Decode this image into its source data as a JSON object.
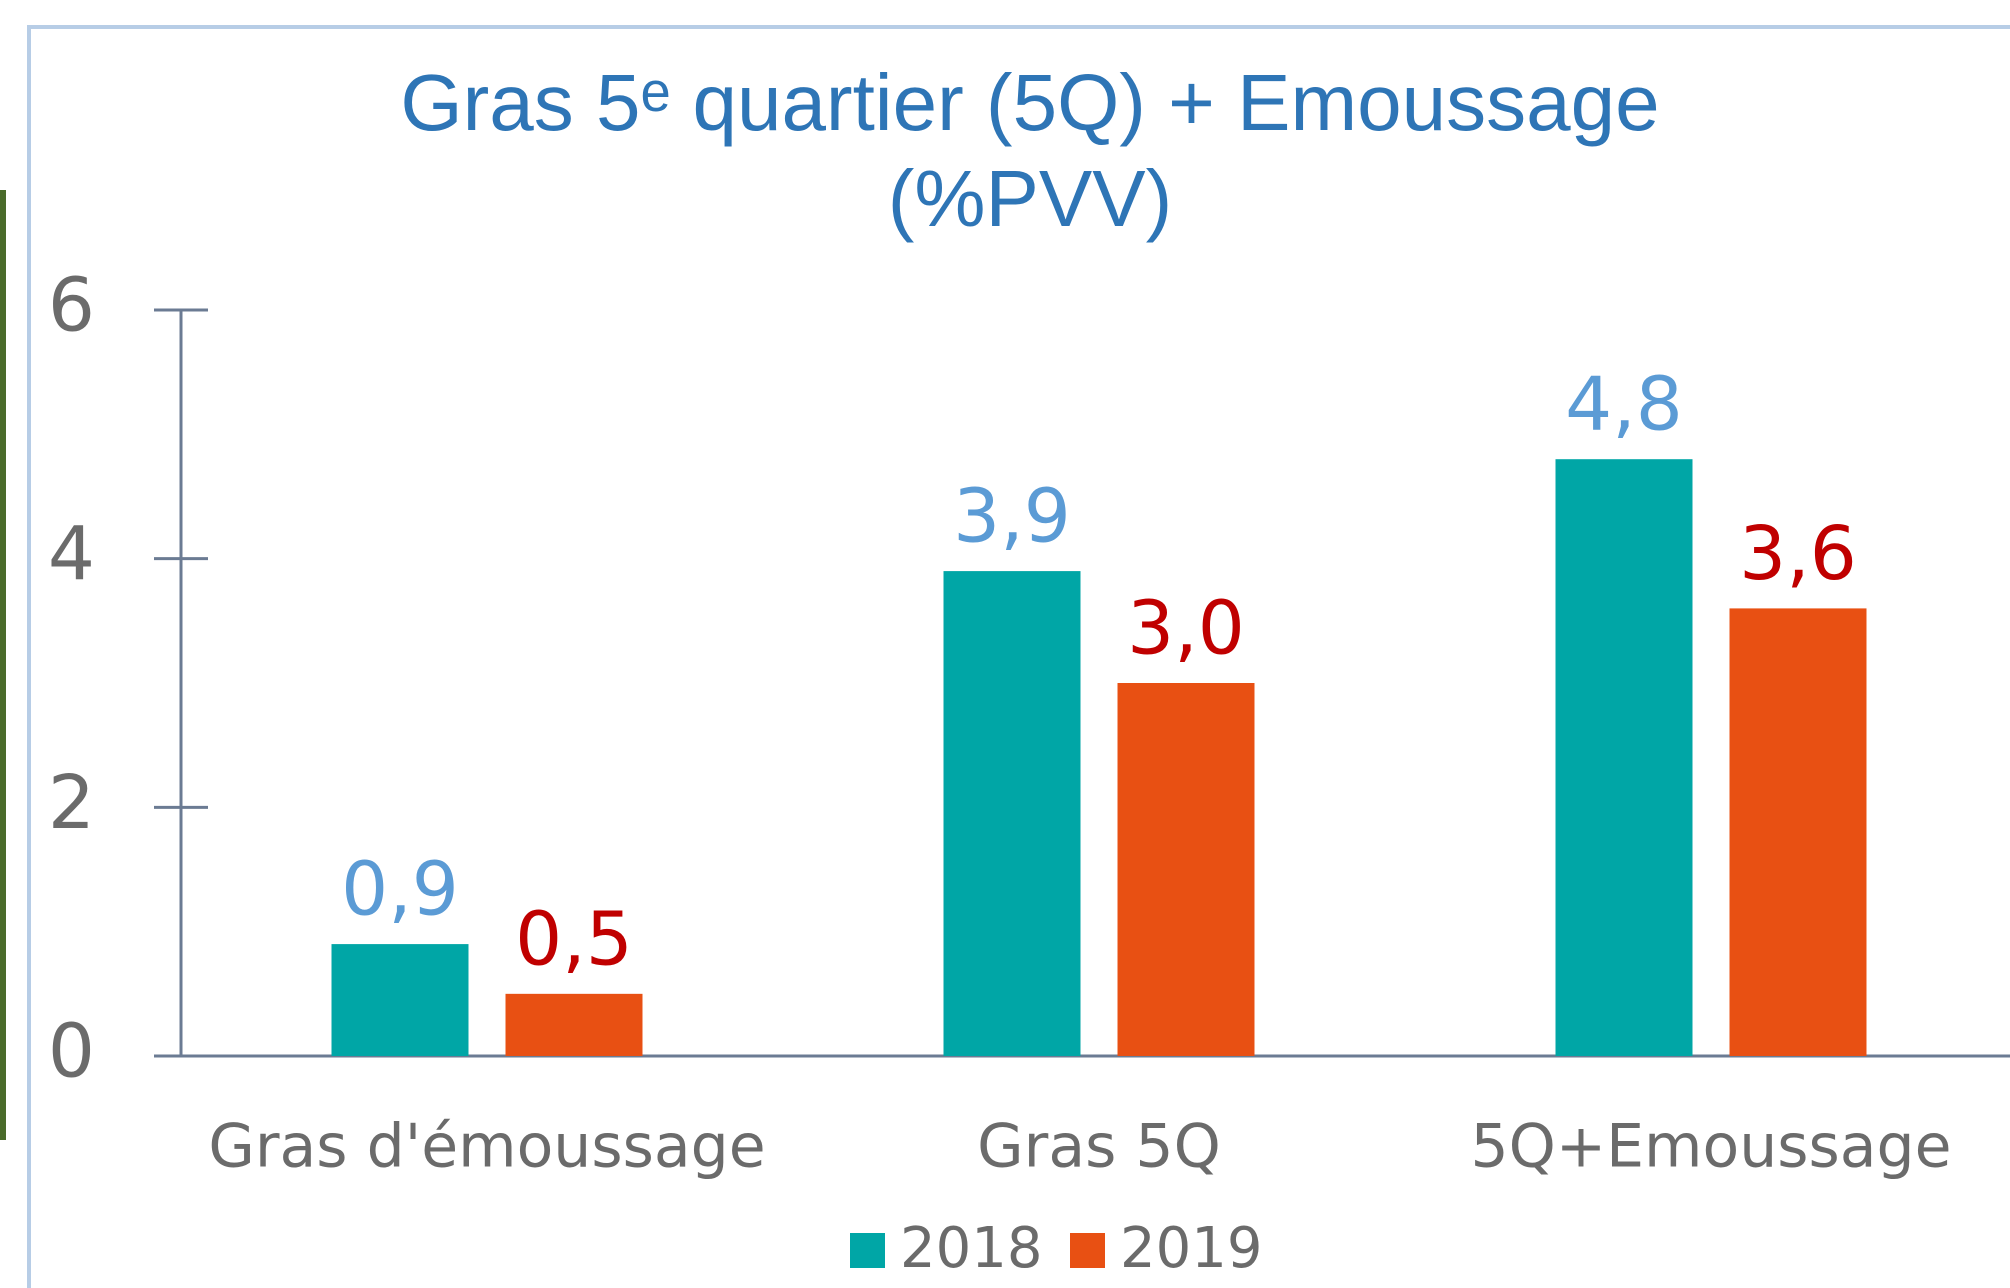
{
  "chart_data": {
    "type": "bar",
    "title": [
      "Gras 5ᵉ quartier (5Q) + Emoussage",
      "(%PVV)"
    ],
    "categories": [
      "Gras d'émoussage",
      "Gras 5Q",
      "5Q+Emoussage"
    ],
    "series": [
      {
        "name": "2018",
        "color": "#00a6a6",
        "label_color": "#5b9bd5",
        "values": [
          0.9,
          3.9,
          4.8
        ],
        "value_labels": [
          "0,9",
          "3,9",
          "4,8"
        ]
      },
      {
        "name": "2019",
        "color": "#e85013",
        "label_color": "#c00000",
        "values": [
          0.5,
          3.0,
          3.6
        ],
        "value_labels": [
          "0,5",
          "3,0",
          "3,6"
        ]
      }
    ],
    "ylim": [
      0,
      6
    ],
    "yticks": [
      0,
      2,
      4,
      6
    ],
    "grid": false
  }
}
